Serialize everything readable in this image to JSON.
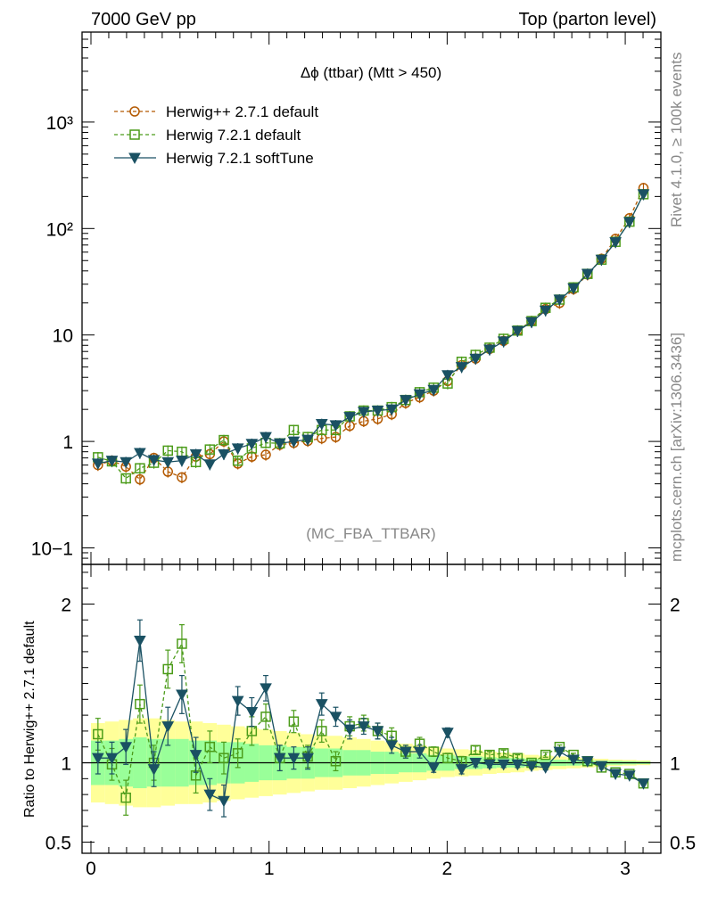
{
  "header": {
    "left": "7000 GeV pp",
    "right": "Top (parton level)"
  },
  "side_labels": {
    "rivet": "Rivet 4.1.0, ≥ 100k events",
    "mcplots": "mcplots.cern.ch [arXiv:1306.3436]"
  },
  "chart_data": {
    "type": "line",
    "title": "Δϕ (ttbar) (Mtt > 450)",
    "analysis_tag": "(MC_FBA_TTBAR)",
    "xlabel": "",
    "ylabel": "",
    "xlim": [
      -0.05,
      3.2
    ],
    "ylim": [
      0.07,
      7000
    ],
    "yscale": "log",
    "ytick_labels": [
      "10−1",
      "1",
      "10",
      "10²",
      "10³"
    ],
    "x_ticks": [
      0,
      1,
      2,
      3
    ],
    "x_tick_labels": [
      "0",
      "1",
      "2",
      "3"
    ],
    "x": [
      0.0393,
      0.1178,
      0.1963,
      0.2749,
      0.3534,
      0.432,
      0.5105,
      0.589,
      0.6676,
      0.7461,
      0.8247,
      0.9032,
      0.9817,
      1.0603,
      1.1388,
      1.2174,
      1.2959,
      1.3744,
      1.453,
      1.5315,
      1.6101,
      1.6886,
      1.7671,
      1.8457,
      1.9242,
      2.0028,
      2.0813,
      2.1598,
      2.2384,
      2.3169,
      2.3955,
      2.474,
      2.5525,
      2.6311,
      2.7096,
      2.7882,
      2.8667,
      2.9452,
      3.0238,
      3.1023
    ],
    "legend": {
      "position": "top-left",
      "entries": [
        "Herwig++ 2.7.1 default",
        "Herwig 7.2.1 default",
        "Herwig 7.2.1 softTune"
      ]
    },
    "series": [
      {
        "name": "Herwig++ 2.7.1 default",
        "color": "#b35900",
        "marker": "circle",
        "style": "dashed",
        "values": [
          0.6,
          0.66,
          0.58,
          0.44,
          0.7,
          0.52,
          0.46,
          0.72,
          0.76,
          1.0,
          0.62,
          0.72,
          0.75,
          0.93,
          0.97,
          1.01,
          1.07,
          1.1,
          1.4,
          1.55,
          1.63,
          1.8,
          2.3,
          2.6,
          3.0,
          3.7,
          5.2,
          6.0,
          7.4,
          8.8,
          11.0,
          13.5,
          17.5,
          20.0,
          27.0,
          37.0,
          52.0,
          80.0,
          125.0,
          240.0
        ]
      },
      {
        "name": "Herwig 7.2.1 default",
        "color": "#4c9c1a",
        "marker": "square",
        "style": "dashed",
        "values": [
          0.71,
          0.65,
          0.45,
          0.56,
          0.63,
          0.82,
          0.8,
          0.64,
          0.84,
          1.03,
          0.66,
          0.86,
          0.97,
          0.96,
          1.28,
          1.1,
          1.28,
          1.28,
          1.72,
          1.95,
          1.95,
          2.1,
          2.45,
          2.9,
          3.2,
          3.5,
          5.6,
          6.5,
          7.6,
          9.2,
          11.0,
          13.5,
          18.0,
          21.5,
          28.0,
          37.5,
          51.0,
          75.0,
          116.0,
          210.0
        ]
      },
      {
        "name": "Herwig 7.2.1 softTune",
        "color": "#1a5163",
        "marker": "triangle-down",
        "style": "solid",
        "values": [
          0.62,
          0.66,
          0.64,
          0.78,
          0.67,
          0.64,
          0.66,
          0.76,
          0.61,
          0.76,
          0.86,
          0.95,
          1.1,
          0.96,
          1.0,
          1.04,
          1.46,
          1.42,
          1.7,
          1.9,
          1.95,
          2.0,
          2.45,
          2.78,
          3.05,
          4.2,
          5.0,
          6.0,
          7.3,
          8.7,
          10.9,
          13.2,
          17.0,
          21.5,
          27.5,
          37.5,
          51.0,
          74.5,
          115.0,
          210.0
        ]
      }
    ],
    "ratio": {
      "ylabel": "Ratio to Herwig++ 2.7.1 default",
      "ylim": [
        0.43,
        2.25
      ],
      "yticks": [
        0.5,
        1,
        2
      ],
      "ytick_labels": [
        "0.5",
        "1",
        "2"
      ],
      "reference": 1,
      "band_inner": [
        0.14,
        0.14,
        0.15,
        0.16,
        0.15,
        0.15,
        0.15,
        0.14,
        0.14,
        0.13,
        0.13,
        0.12,
        0.11,
        0.11,
        0.1,
        0.1,
        0.09,
        0.09,
        0.08,
        0.08,
        0.07,
        0.07,
        0.06,
        0.06,
        0.05,
        0.05,
        0.04,
        0.04,
        0.035,
        0.03,
        0.03,
        0.025,
        0.02,
        0.02,
        0.018,
        0.015,
        0.013,
        0.012,
        0.01,
        0.008
      ],
      "band_outer": [
        0.25,
        0.26,
        0.27,
        0.28,
        0.28,
        0.27,
        0.26,
        0.26,
        0.25,
        0.24,
        0.23,
        0.22,
        0.21,
        0.2,
        0.19,
        0.18,
        0.17,
        0.17,
        0.16,
        0.15,
        0.14,
        0.13,
        0.12,
        0.11,
        0.1,
        0.09,
        0.085,
        0.08,
        0.07,
        0.065,
        0.06,
        0.05,
        0.045,
        0.04,
        0.035,
        0.03,
        0.025,
        0.02,
        0.018,
        0.015
      ],
      "series": [
        {
          "name": "Herwig 7.2.1 default",
          "values": [
            1.18,
            0.99,
            0.78,
            1.37,
            1.0,
            1.59,
            1.75,
            0.92,
            1.1,
            1.03,
            1.06,
            1.2,
            1.29,
            1.03,
            1.26,
            1.04,
            1.2,
            1.01,
            1.23,
            1.25,
            1.2,
            1.17,
            1.07,
            1.12,
            1.07,
            1.03,
            1.01,
            1.08,
            1.05,
            1.06,
            1.03,
            1.0,
            1.05,
            1.1,
            1.05,
            1.01,
            0.97,
            0.94,
            0.93,
            0.87
          ],
          "errors": [
            0.1,
            0.1,
            0.11,
            0.12,
            0.11,
            0.12,
            0.12,
            0.11,
            0.1,
            0.1,
            0.09,
            0.09,
            0.08,
            0.08,
            0.07,
            0.07,
            0.07,
            0.06,
            0.06,
            0.05,
            0.05,
            0.05,
            0.04,
            0.04,
            0.03,
            0.03,
            0.03,
            0.025,
            0.02,
            0.02,
            0.02,
            0.015,
            0.015,
            0.012,
            0.01,
            0.01,
            0.01,
            0.008,
            0.008,
            0.006
          ]
        },
        {
          "name": "Herwig 7.2.1 softTune",
          "values": [
            1.03,
            1.03,
            1.1,
            1.77,
            0.96,
            1.23,
            1.43,
            1.05,
            0.8,
            0.76,
            1.39,
            1.32,
            1.47,
            1.03,
            1.03,
            1.03,
            1.37,
            1.29,
            1.21,
            1.23,
            1.2,
            1.11,
            1.07,
            1.07,
            0.97,
            1.19,
            0.96,
            1.0,
            0.99,
            0.99,
            0.99,
            0.98,
            0.97,
            1.07,
            1.02,
            1.01,
            0.98,
            0.93,
            0.92,
            0.87
          ],
          "errors": [
            0.1,
            0.1,
            0.11,
            0.13,
            0.11,
            0.12,
            0.12,
            0.11,
            0.1,
            0.1,
            0.09,
            0.09,
            0.08,
            0.08,
            0.07,
            0.07,
            0.07,
            0.06,
            0.06,
            0.05,
            0.05,
            0.05,
            0.04,
            0.04,
            0.03,
            0.03,
            0.03,
            0.025,
            0.02,
            0.02,
            0.02,
            0.015,
            0.015,
            0.012,
            0.01,
            0.01,
            0.01,
            0.008,
            0.008,
            0.006
          ]
        }
      ]
    }
  }
}
